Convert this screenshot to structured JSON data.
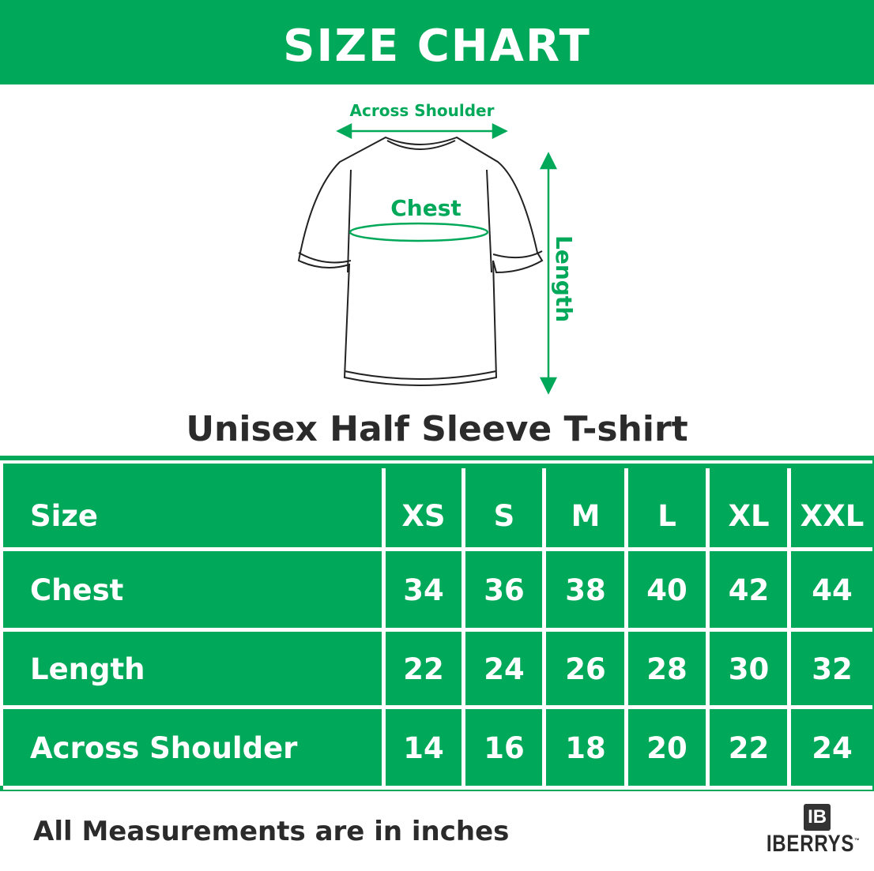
{
  "title": "SIZE CHART",
  "diagram": {
    "across_shoulder": "Across Shoulder",
    "chest": "Chest",
    "length": "Length"
  },
  "subtitle": "Unisex Half Sleeve T-shirt",
  "table": {
    "header": {
      "label": "Size",
      "sizes": [
        "XS",
        "S",
        "M",
        "L",
        "XL",
        "XXL"
      ]
    },
    "rows": [
      {
        "label": "Chest",
        "values": [
          "34",
          "36",
          "38",
          "40",
          "42",
          "44"
        ]
      },
      {
        "label": "Length",
        "values": [
          "22",
          "24",
          "26",
          "28",
          "30",
          "32"
        ]
      },
      {
        "label": "Across Shoulder",
        "values": [
          "14",
          "16",
          "18",
          "20",
          "22",
          "24"
        ]
      }
    ]
  },
  "footer": "All Measurements are in inches",
  "logo": {
    "mark": "IB",
    "name": "IBERRYS",
    "tm": "™"
  },
  "colors": {
    "green": "#00a859",
    "text": "#2b2b2b"
  }
}
